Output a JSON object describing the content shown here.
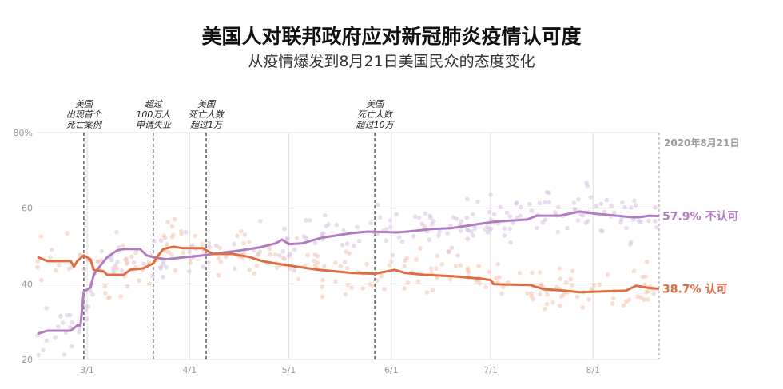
{
  "header": {
    "title": "美国人对联邦政府应对新冠肺炎疫情认可度",
    "subtitle": "从疫情爆发到8月21日美国民众的态度变化"
  },
  "chart_data": {
    "type": "line",
    "title": "美国人对联邦政府应对新冠肺炎疫情认可度",
    "subtitle": "从疫情爆发到8月21日美国民众的态度变化",
    "xlim": [
      "2020-02-15",
      "2020-08-21"
    ],
    "ylim": [
      20,
      80
    ],
    "yticks": [
      {
        "v": 80,
        "label": "80%"
      },
      {
        "v": 60,
        "label": "60"
      },
      {
        "v": 40,
        "label": "40"
      },
      {
        "v": 20,
        "label": "20"
      }
    ],
    "xticks": [
      {
        "d": "2020-03-01",
        "label": "3/1"
      },
      {
        "d": "2020-04-01",
        "label": "4/1"
      },
      {
        "d": "2020-05-01",
        "label": "5/1"
      },
      {
        "d": "2020-06-01",
        "label": "6/1"
      },
      {
        "d": "2020-07-01",
        "label": "7/1"
      },
      {
        "d": "2020-08-01",
        "label": "8/1"
      }
    ],
    "grid": true,
    "end_label": "2020年8月21日",
    "annotations": [
      {
        "d": "2020-02-29",
        "lines": [
          "美国",
          "出现首个",
          "死亡案例"
        ]
      },
      {
        "d": "2020-03-21",
        "lines": [
          "超过",
          "100万人",
          "申请失业"
        ]
      },
      {
        "d": "2020-04-06",
        "lines": [
          "美国",
          "死亡人数",
          "超过1万"
        ]
      },
      {
        "d": "2020-05-27",
        "lines": [
          "美国",
          "死亡人数",
          "超过10万"
        ]
      }
    ],
    "series": [
      {
        "name": "不认可",
        "end_value": "57.9%",
        "color": "#b07cc0",
        "dot_color": "#d6bfe0",
        "points": [
          [
            "2020-02-15",
            26.8
          ],
          [
            "2020-02-18",
            27.6
          ],
          [
            "2020-02-25",
            27.6
          ],
          [
            "2020-02-27",
            29
          ],
          [
            "2020-02-28",
            29
          ],
          [
            "2020-02-29",
            38
          ],
          [
            "2020-03-02",
            39
          ],
          [
            "2020-03-03",
            42.4
          ],
          [
            "2020-03-04",
            43.7
          ],
          [
            "2020-03-07",
            47
          ],
          [
            "2020-03-10",
            48.8
          ],
          [
            "2020-03-12",
            49.2
          ],
          [
            "2020-03-17",
            49.2
          ],
          [
            "2020-03-19",
            47.5
          ],
          [
            "2020-03-22",
            46.9
          ],
          [
            "2020-03-25",
            46.5
          ],
          [
            "2020-03-30",
            47
          ],
          [
            "2020-04-05",
            47.5
          ],
          [
            "2020-04-08",
            47.9
          ],
          [
            "2020-04-16",
            48.8
          ],
          [
            "2020-04-22",
            49.6
          ],
          [
            "2020-04-27",
            50.7
          ],
          [
            "2020-04-29",
            51.7
          ],
          [
            "2020-05-01",
            50.5
          ],
          [
            "2020-05-05",
            50.7
          ],
          [
            "2020-05-11",
            52.2
          ],
          [
            "2020-05-20",
            53.4
          ],
          [
            "2020-05-25",
            53.8
          ],
          [
            "2020-06-03",
            53.6
          ],
          [
            "2020-06-08",
            54
          ],
          [
            "2020-06-13",
            54.5
          ],
          [
            "2020-06-19",
            54.7
          ],
          [
            "2020-06-25",
            55.5
          ],
          [
            "2020-07-02",
            56.4
          ],
          [
            "2020-07-12",
            57
          ],
          [
            "2020-07-15",
            58
          ],
          [
            "2020-07-22",
            58
          ],
          [
            "2020-07-28",
            59.1
          ],
          [
            "2020-08-02",
            58.5
          ],
          [
            "2020-08-08",
            58
          ],
          [
            "2020-08-13",
            57.6
          ],
          [
            "2020-08-15",
            57.6
          ],
          [
            "2020-08-18",
            58
          ],
          [
            "2020-08-21",
            57.9
          ]
        ]
      },
      {
        "name": "认可",
        "end_value": "38.7%",
        "color": "#e06c42",
        "dot_color": "#f3c2ad",
        "points": [
          [
            "2020-02-15",
            47.1
          ],
          [
            "2020-02-18",
            46
          ],
          [
            "2020-02-25",
            46
          ],
          [
            "2020-02-26",
            44.6
          ],
          [
            "2020-02-27",
            46
          ],
          [
            "2020-02-29",
            47.5
          ],
          [
            "2020-03-02",
            46.5
          ],
          [
            "2020-03-03",
            43.7
          ],
          [
            "2020-03-06",
            43.3
          ],
          [
            "2020-03-07",
            42.4
          ],
          [
            "2020-03-12",
            42.4
          ],
          [
            "2020-03-14",
            43.7
          ],
          [
            "2020-03-18",
            44.1
          ],
          [
            "2020-03-21",
            45.4
          ],
          [
            "2020-03-22",
            46.9
          ],
          [
            "2020-03-24",
            49.2
          ],
          [
            "2020-03-27",
            49.8
          ],
          [
            "2020-03-30",
            49.4
          ],
          [
            "2020-04-05",
            49.4
          ],
          [
            "2020-04-08",
            47.9
          ],
          [
            "2020-04-14",
            47.9
          ],
          [
            "2020-04-19",
            47.1
          ],
          [
            "2020-04-23",
            46
          ],
          [
            "2020-04-27",
            45.4
          ],
          [
            "2020-05-03",
            44.6
          ],
          [
            "2020-05-10",
            43.7
          ],
          [
            "2020-05-20",
            42.9
          ],
          [
            "2020-05-27",
            42.7
          ],
          [
            "2020-06-02",
            43.7
          ],
          [
            "2020-06-05",
            42.9
          ],
          [
            "2020-06-11",
            42.4
          ],
          [
            "2020-06-20",
            42
          ],
          [
            "2020-06-28",
            41.4
          ],
          [
            "2020-07-01",
            41
          ],
          [
            "2020-07-02",
            39.9
          ],
          [
            "2020-07-13",
            39.7
          ],
          [
            "2020-07-17",
            38.6
          ],
          [
            "2020-07-22",
            38.3
          ],
          [
            "2020-07-28",
            37.8
          ],
          [
            "2020-08-11",
            38.2
          ],
          [
            "2020-08-14",
            39.5
          ],
          [
            "2020-08-18",
            38.9
          ],
          [
            "2020-08-21",
            38.7
          ]
        ]
      }
    ]
  }
}
